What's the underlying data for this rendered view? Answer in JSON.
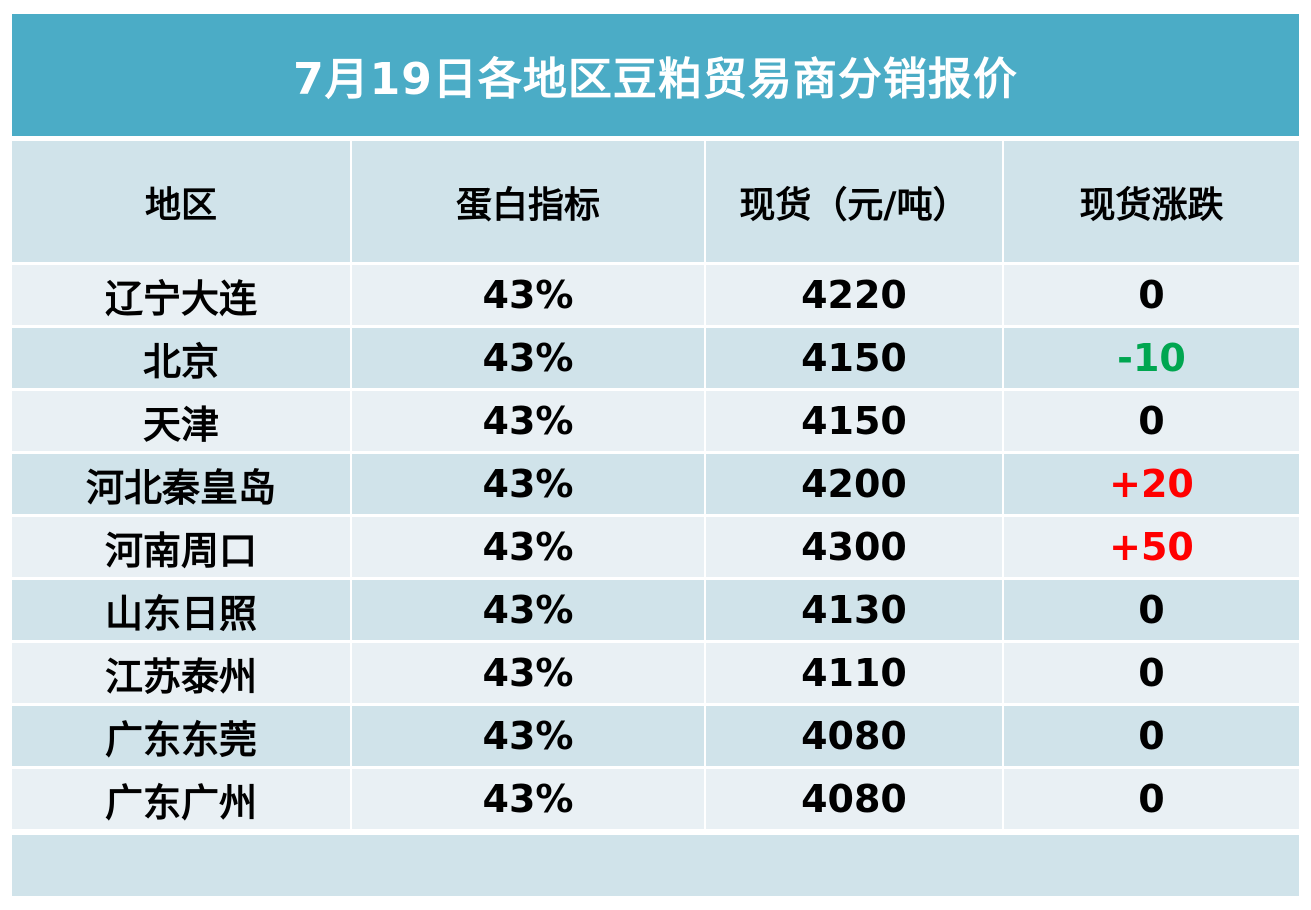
{
  "title": "7月19日各地区豆粕贸易商分销报价",
  "colors": {
    "title_bg": "#4bacc6",
    "title_text": "#ffffff",
    "row_light": "#e9f0f4",
    "row_dark": "#d0e3ea",
    "change_up": "#ff0000",
    "change_down": "#00a650",
    "change_flat": "#000000"
  },
  "table": {
    "headers": [
      "地区",
      "蛋白指标",
      "现货（元/吨）",
      "现货涨跌"
    ],
    "rows": [
      {
        "region": "辽宁大连",
        "protein": "43%",
        "price": "4220",
        "change": "0",
        "trend": "flat"
      },
      {
        "region": "北京",
        "protein": "43%",
        "price": "4150",
        "change": "-10",
        "trend": "down"
      },
      {
        "region": "天津",
        "protein": "43%",
        "price": "4150",
        "change": "0",
        "trend": "flat"
      },
      {
        "region": "河北秦皇岛",
        "protein": "43%",
        "price": "4200",
        "change": "+20",
        "trend": "up"
      },
      {
        "region": "河南周口",
        "protein": "43%",
        "price": "4300",
        "change": "+50",
        "trend": "up"
      },
      {
        "region": "山东日照",
        "protein": "43%",
        "price": "4130",
        "change": "0",
        "trend": "flat"
      },
      {
        "region": "江苏泰州",
        "protein": "43%",
        "price": "4110",
        "change": "0",
        "trend": "flat"
      },
      {
        "region": "广东东莞",
        "protein": "43%",
        "price": "4080",
        "change": "0",
        "trend": "flat"
      },
      {
        "region": "广东广州",
        "protein": "43%",
        "price": "4080",
        "change": "0",
        "trend": "flat"
      }
    ]
  }
}
